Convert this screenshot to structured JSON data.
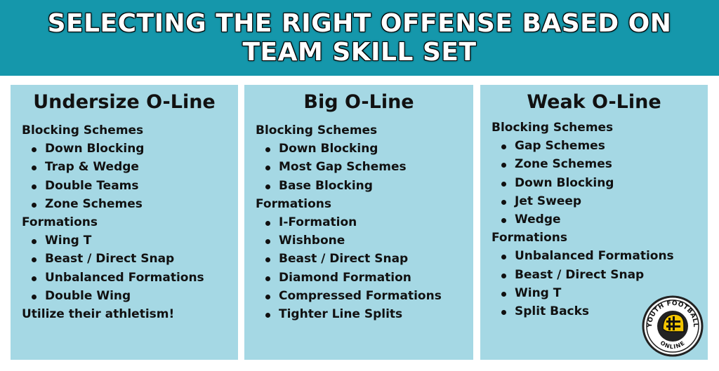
{
  "title": "SELECTING THE RIGHT OFFENSE BASED ON TEAM SKILL SET",
  "cards": [
    {
      "heading": "Undersize O-Line",
      "blocking_label": "Blocking Schemes",
      "blocking": [
        "Down Blocking",
        "Trap & Wedge",
        "Double Teams",
        "Zone Schemes"
      ],
      "formations_label": "Formations",
      "formations": [
        "Wing T",
        "Beast / Direct Snap",
        "Unbalanced Formations",
        "Double Wing"
      ],
      "note": "Utilize their athletism!"
    },
    {
      "heading": "Big O-Line",
      "blocking_label": "Blocking Schemes",
      "blocking": [
        "Down Blocking",
        "Most Gap Schemes",
        "Base Blocking"
      ],
      "formations_label": "Formations",
      "formations": [
        "I-Formation",
        "Wishbone",
        "Beast / Direct Snap",
        "Diamond Formation",
        "Compressed Formations",
        "Tighter Line Splits"
      ]
    },
    {
      "heading": "Weak O-Line",
      "blocking_label": "Blocking Schemes",
      "blocking": [
        "Gap Schemes",
        "Zone Schemes",
        "Down Blocking",
        "Jet Sweep",
        "Wedge"
      ],
      "formations_label": "Formations",
      "formations": [
        "Unbalanced Formations",
        "Beast / Direct Snap",
        "Wing T",
        "Split Backs"
      ]
    }
  ],
  "logo": {
    "text_top": "YOUTH FOOTBALL",
    "text_bottom": "ONLINE",
    "icon": "helmet-icon"
  },
  "colors": {
    "banner": "#1597ab",
    "card": "#a5d8e4",
    "text": "#111111",
    "logo_yellow": "#f2c400"
  }
}
